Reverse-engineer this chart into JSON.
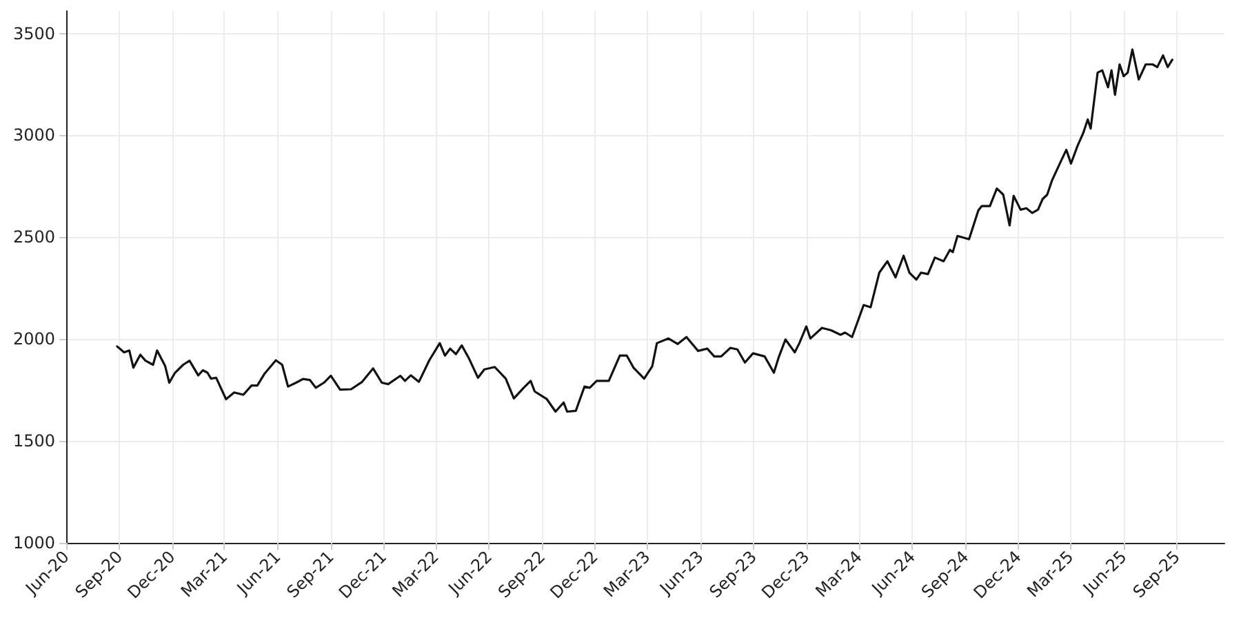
{
  "chart_data": {
    "type": "line",
    "xlim": [
      "2020-06-01",
      "2025-11-22"
    ],
    "ylim": [
      1000,
      3610
    ],
    "xticks": [
      {
        "value": "2020-06-01",
        "label": "Jun-20"
      },
      {
        "value": "2020-09-01",
        "label": "Sep-20"
      },
      {
        "value": "2020-12-01",
        "label": "Dec-20"
      },
      {
        "value": "2021-03-01",
        "label": "Mar-21"
      },
      {
        "value": "2021-06-01",
        "label": "Jun-21"
      },
      {
        "value": "2021-09-01",
        "label": "Sep-21"
      },
      {
        "value": "2021-12-01",
        "label": "Dec-21"
      },
      {
        "value": "2022-03-01",
        "label": "Mar-22"
      },
      {
        "value": "2022-06-01",
        "label": "Jun-22"
      },
      {
        "value": "2022-09-01",
        "label": "Sep-22"
      },
      {
        "value": "2022-12-01",
        "label": "Dec-22"
      },
      {
        "value": "2023-03-01",
        "label": "Mar-23"
      },
      {
        "value": "2023-06-01",
        "label": "Jun-23"
      },
      {
        "value": "2023-09-01",
        "label": "Sep-23"
      },
      {
        "value": "2023-12-01",
        "label": "Dec-23"
      },
      {
        "value": "2024-03-01",
        "label": "Mar-24"
      },
      {
        "value": "2024-06-01",
        "label": "Jun-24"
      },
      {
        "value": "2024-09-01",
        "label": "Sep-24"
      },
      {
        "value": "2024-12-01",
        "label": "Dec-24"
      },
      {
        "value": "2025-03-01",
        "label": "Mar-25"
      },
      {
        "value": "2025-06-01",
        "label": "Jun-25"
      },
      {
        "value": "2025-09-01",
        "label": "Sep-25"
      }
    ],
    "yticks": [
      1000,
      1500,
      2000,
      2500,
      3000,
      3500
    ],
    "grid": true,
    "marker": "none",
    "line_style": "solid",
    "x": [
      "2020-08-28",
      "2020-09-09",
      "2020-09-18",
      "2020-09-25",
      "2020-10-07",
      "2020-10-16",
      "2020-10-29",
      "2020-11-05",
      "2020-11-19",
      "2020-11-26",
      "2020-12-06",
      "2020-12-20",
      "2020-12-31",
      "2021-01-15",
      "2021-01-23",
      "2021-01-31",
      "2021-02-06",
      "2021-02-15",
      "2021-03-04",
      "2021-03-18",
      "2021-04-03",
      "2021-04-17",
      "2021-04-27",
      "2021-05-09",
      "2021-05-29",
      "2021-06-09",
      "2021-06-19",
      "2021-07-03",
      "2021-07-15",
      "2021-07-27",
      "2021-08-06",
      "2021-08-20",
      "2021-09-01",
      "2021-09-17",
      "2021-10-06",
      "2021-10-25",
      "2021-11-13",
      "2021-11-28",
      "2021-12-09",
      "2021-12-30",
      "2022-01-07",
      "2022-01-17",
      "2022-01-31",
      "2022-02-18",
      "2022-03-08",
      "2022-03-17",
      "2022-03-26",
      "2022-04-05",
      "2022-04-15",
      "2022-04-27",
      "2022-05-13",
      "2022-05-24",
      "2022-06-11",
      "2022-06-30",
      "2022-07-14",
      "2022-07-31",
      "2022-08-12",
      "2022-08-19",
      "2022-09-09",
      "2022-09-24",
      "2022-10-08",
      "2022-10-14",
      "2022-10-29",
      "2022-11-13",
      "2022-11-22",
      "2022-12-04",
      "2022-12-25",
      "2023-01-13",
      "2023-01-25",
      "2023-02-06",
      "2023-02-24",
      "2023-03-10",
      "2023-03-18",
      "2023-04-07",
      "2023-04-23",
      "2023-05-08",
      "2023-05-28",
      "2023-06-13",
      "2023-06-25",
      "2023-07-07",
      "2023-07-23",
      "2023-08-04",
      "2023-08-17",
      "2023-08-31",
      "2023-09-20",
      "2023-10-06",
      "2023-10-14",
      "2023-10-26",
      "2023-11-11",
      "2023-11-19",
      "2023-12-01",
      "2023-12-08",
      "2023-12-28",
      "2024-01-13",
      "2024-01-29",
      "2024-02-06",
      "2024-02-18",
      "2024-03-09",
      "2024-03-21",
      "2024-04-05",
      "2024-04-19",
      "2024-05-03",
      "2024-05-17",
      "2024-05-27",
      "2024-06-08",
      "2024-06-16",
      "2024-06-28",
      "2024-07-10",
      "2024-07-25",
      "2024-08-05",
      "2024-08-10",
      "2024-08-18",
      "2024-09-07",
      "2024-09-23",
      "2024-09-29",
      "2024-10-13",
      "2024-10-25",
      "2024-11-05",
      "2024-11-16",
      "2024-11-23",
      "2024-12-05",
      "2024-12-15",
      "2024-12-25",
      "2025-01-04",
      "2025-01-12",
      "2025-01-20",
      "2025-01-28",
      "2025-02-11",
      "2025-02-22",
      "2025-03-02",
      "2025-03-13",
      "2025-03-23",
      "2025-03-31",
      "2025-04-05",
      "2025-04-17",
      "2025-04-25",
      "2025-05-05",
      "2025-05-11",
      "2025-05-17",
      "2025-05-25",
      "2025-06-01",
      "2025-06-08",
      "2025-06-16",
      "2025-06-27",
      "2025-07-09",
      "2025-07-21",
      "2025-07-29",
      "2025-08-08",
      "2025-08-16",
      "2025-08-24"
    ],
    "series": [
      {
        "color": "#111111",
        "values": [
          1964,
          1935,
          1944,
          1860,
          1923,
          1894,
          1874,
          1944,
          1867,
          1786,
          1835,
          1874,
          1894,
          1822,
          1847,
          1835,
          1806,
          1810,
          1705,
          1738,
          1727,
          1772,
          1772,
          1828,
          1896,
          1874,
          1767,
          1786,
          1804,
          1799,
          1761,
          1786,
          1820,
          1752,
          1754,
          1790,
          1856,
          1786,
          1779,
          1820,
          1795,
          1822,
          1790,
          1896,
          1980,
          1919,
          1953,
          1926,
          1969,
          1908,
          1810,
          1851,
          1863,
          1806,
          1709,
          1761,
          1795,
          1743,
          1705,
          1644,
          1689,
          1644,
          1648,
          1767,
          1761,
          1795,
          1795,
          1919,
          1919,
          1858,
          1806,
          1867,
          1980,
          2003,
          1976,
          2010,
          1942,
          1953,
          1915,
          1915,
          1957,
          1949,
          1885,
          1930,
          1915,
          1835,
          1908,
          1998,
          1935,
          1980,
          2062,
          2003,
          2055,
          2043,
          2021,
          2032,
          2010,
          2167,
          2156,
          2326,
          2382,
          2303,
          2409,
          2326,
          2292,
          2326,
          2319,
          2400,
          2382,
          2438,
          2427,
          2506,
          2490,
          2631,
          2653,
          2653,
          2739,
          2709,
          2558,
          2703,
          2635,
          2642,
          2619,
          2635,
          2687,
          2709,
          2777,
          2863,
          2929,
          2861,
          2946,
          3010,
          3078,
          3033,
          3308,
          3319,
          3236,
          3319,
          3199,
          3348,
          3290,
          3308,
          3421,
          3274,
          3348,
          3348,
          3335,
          3392,
          3335,
          3371
        ]
      }
    ]
  }
}
